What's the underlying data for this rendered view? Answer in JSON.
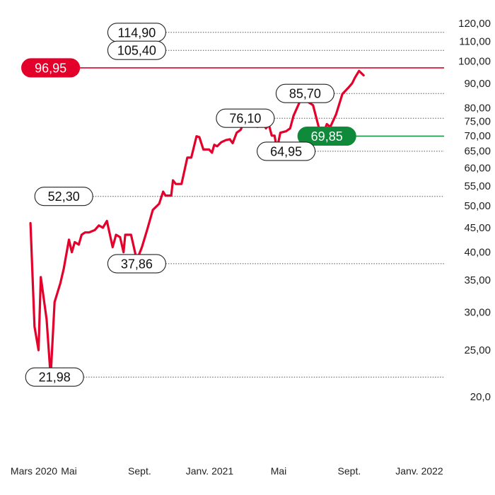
{
  "chart_data": {
    "type": "line",
    "scale": "log",
    "ylim": [
      20,
      120
    ],
    "colors": {
      "line": "#e3002b",
      "support_fill": "#0e8a3a",
      "resistance_fill": "#e3002b",
      "level_line": "#555555",
      "tick_text": "#222222"
    },
    "y_ticks": [
      {
        "value": 120,
        "label": "120,00"
      },
      {
        "value": 110,
        "label": "110,00"
      },
      {
        "value": 100,
        "label": "100,00"
      },
      {
        "value": 90,
        "label": "90,00"
      },
      {
        "value": 80,
        "label": "80,00"
      },
      {
        "value": 75,
        "label": "75,00"
      },
      {
        "value": 70,
        "label": "70,00"
      },
      {
        "value": 65,
        "label": "65,00"
      },
      {
        "value": 60,
        "label": "60,00"
      },
      {
        "value": 55,
        "label": "55,00"
      },
      {
        "value": 50,
        "label": "50,00"
      },
      {
        "value": 45,
        "label": "45,00"
      },
      {
        "value": 40,
        "label": "40,00"
      },
      {
        "value": 35,
        "label": "35,00"
      },
      {
        "value": 30,
        "label": "30,00"
      },
      {
        "value": 25,
        "label": "25,00"
      },
      {
        "value": 20,
        "label": "20,0"
      }
    ],
    "x_ticks": [
      {
        "date": "2020-03-01",
        "label": "Mars 2020"
      },
      {
        "date": "2020-05-01",
        "label": "Mai"
      },
      {
        "date": "2020-09-01",
        "label": "Sept."
      },
      {
        "date": "2021-01-01",
        "label": "Janv. 2021"
      },
      {
        "date": "2021-05-01",
        "label": "Mai"
      },
      {
        "date": "2021-09-01",
        "label": "Sept."
      },
      {
        "date": "2022-01-01",
        "label": "Janv. 2022"
      }
    ],
    "series": [
      {
        "points": [
          [
            "2020-02-24",
            46.0
          ],
          [
            "2020-03-02",
            28.0
          ],
          [
            "2020-03-09",
            25.0
          ],
          [
            "2020-03-13",
            35.5
          ],
          [
            "2020-03-23",
            29.0
          ],
          [
            "2020-03-30",
            21.98
          ],
          [
            "2020-04-06",
            31.5
          ],
          [
            "2020-04-16",
            34.5
          ],
          [
            "2020-04-22",
            37.0
          ],
          [
            "2020-05-01",
            42.5
          ],
          [
            "2020-05-06",
            40.0
          ],
          [
            "2020-05-11",
            42.0
          ],
          [
            "2020-05-18",
            41.5
          ],
          [
            "2020-05-23",
            43.5
          ],
          [
            "2020-05-29",
            44.0
          ],
          [
            "2020-06-05",
            44.0
          ],
          [
            "2020-06-15",
            44.5
          ],
          [
            "2020-06-22",
            45.5
          ],
          [
            "2020-06-29",
            45.0
          ],
          [
            "2020-07-06",
            46.5
          ],
          [
            "2020-07-16",
            41.0
          ],
          [
            "2020-07-22",
            43.5
          ],
          [
            "2020-07-29",
            43.0
          ],
          [
            "2020-08-04",
            40.0
          ],
          [
            "2020-08-07",
            43.5
          ],
          [
            "2020-08-17",
            43.5
          ],
          [
            "2020-08-22",
            41.0
          ],
          [
            "2020-08-27",
            38.5
          ],
          [
            "2020-09-05",
            41.0
          ],
          [
            "2020-09-14",
            44.5
          ],
          [
            "2020-09-24",
            49.0
          ],
          [
            "2020-10-05",
            50.5
          ],
          [
            "2020-10-12",
            53.5
          ],
          [
            "2020-10-16",
            52.5
          ],
          [
            "2020-10-26",
            52.5
          ],
          [
            "2020-10-29",
            56.5
          ],
          [
            "2020-11-03",
            55.5
          ],
          [
            "2020-11-13",
            55.5
          ],
          [
            "2020-11-23",
            63.0
          ],
          [
            "2020-11-30",
            63.0
          ],
          [
            "2020-12-09",
            69.8
          ],
          [
            "2020-12-14",
            69.5
          ],
          [
            "2020-12-21",
            65.5
          ],
          [
            "2020-12-31",
            65.5
          ],
          [
            "2021-01-05",
            64.5
          ],
          [
            "2021-01-09",
            67.0
          ],
          [
            "2021-01-14",
            66.5
          ],
          [
            "2021-01-21",
            67.8
          ],
          [
            "2021-01-29",
            68.5
          ],
          [
            "2021-02-05",
            68.8
          ],
          [
            "2021-02-10",
            67.5
          ],
          [
            "2021-02-17",
            71.0
          ],
          [
            "2021-02-24",
            72.0
          ],
          [
            "2021-03-04",
            76.1
          ],
          [
            "2021-03-15",
            75.8
          ],
          [
            "2021-03-25",
            73.0
          ],
          [
            "2021-04-05",
            74.0
          ],
          [
            "2021-04-09",
            72.5
          ],
          [
            "2021-04-14",
            73.8
          ],
          [
            "2021-04-19",
            70.0
          ],
          [
            "2021-04-24",
            70.0
          ],
          [
            "2021-04-28",
            65.5
          ],
          [
            "2021-05-04",
            71.0
          ],
          [
            "2021-05-14",
            71.5
          ],
          [
            "2021-05-21",
            72.5
          ],
          [
            "2021-05-27",
            77.0
          ],
          [
            "2021-06-09",
            83.5
          ],
          [
            "2021-06-16",
            84.5
          ],
          [
            "2021-06-20",
            82.5
          ],
          [
            "2021-06-30",
            81.0
          ],
          [
            "2021-07-11",
            72.0
          ],
          [
            "2021-07-18",
            71.0
          ],
          [
            "2021-07-24",
            74.0
          ],
          [
            "2021-07-30",
            73.0
          ],
          [
            "2021-08-09",
            77.5
          ],
          [
            "2021-08-20",
            85.5
          ],
          [
            "2021-08-30",
            88.0
          ],
          [
            "2021-09-06",
            90.0
          ],
          [
            "2021-09-11",
            92.5
          ],
          [
            "2021-09-18",
            95.5
          ],
          [
            "2021-09-22",
            94.5
          ],
          [
            "2021-09-26",
            93.5
          ]
        ]
      }
    ],
    "levels": [
      {
        "value": 114.9,
        "label": "114,90",
        "style": "outline",
        "x_start": "2020-08-27"
      },
      {
        "value": 105.4,
        "label": "105,40",
        "style": "outline",
        "x_start": "2020-08-27"
      },
      {
        "value": 96.95,
        "label": "96,95",
        "style": "red",
        "x_start": "2020-03-30"
      },
      {
        "value": 85.7,
        "label": "85,70",
        "style": "outline",
        "x_start": "2021-06-16"
      },
      {
        "value": 76.1,
        "label": "76,10",
        "style": "outline",
        "x_start": "2021-03-04"
      },
      {
        "value": 69.85,
        "label": "69,85",
        "style": "green",
        "x_start": "2021-07-24"
      },
      {
        "value": 64.95,
        "label": "64,95",
        "style": "outline",
        "x_start": "2021-05-14"
      },
      {
        "value": 52.3,
        "label": "52,30",
        "style": "outline",
        "x_start": "2020-04-22"
      },
      {
        "value": 37.86,
        "label": "37,86",
        "style": "outline",
        "x_start": "2020-08-27"
      },
      {
        "value": 21.98,
        "label": "21,98",
        "style": "outline",
        "x_start": "2020-04-06"
      }
    ]
  }
}
